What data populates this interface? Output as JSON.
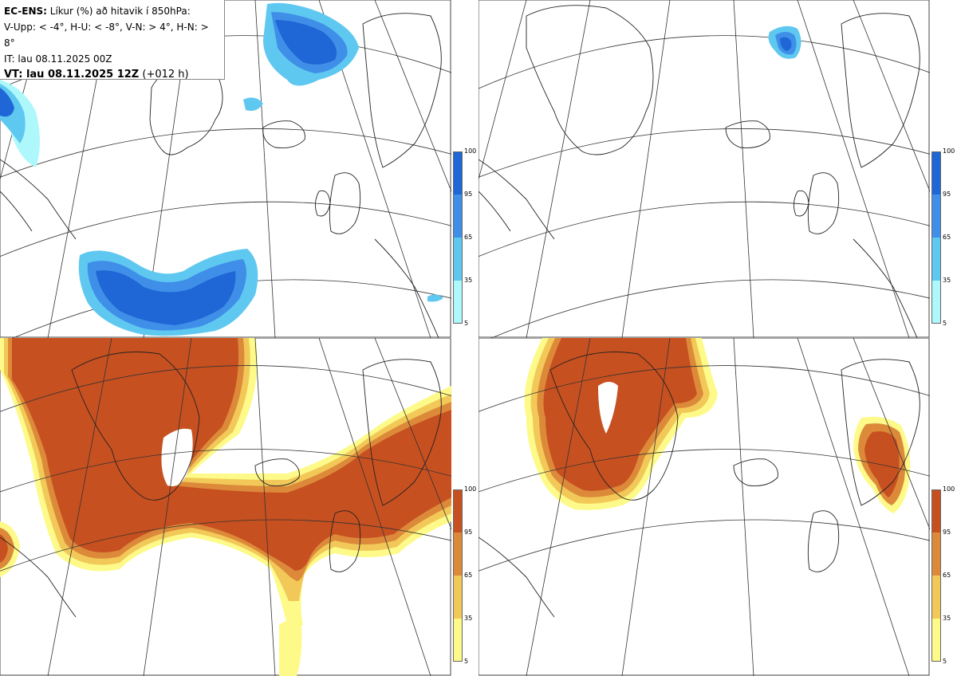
{
  "legend": {
    "line1_bold": "EC-ENS:",
    "line1_rest": " Líkur (%) að hitavik í 850hPa:",
    "line2": "V-Upp: < -4°, H-U: < -8°, V-N: > 4°, H-N: > 8°",
    "line3": "IT: lau 08.11.2025 00Z",
    "line4_bold": "VT: lau 08.11.2025 12Z",
    "line4_rest": " (+012 h)"
  },
  "colorbars": {
    "tick_labels": [
      "100",
      "95",
      "65",
      "35",
      "5"
    ],
    "cold_colors": [
      "#1f66d6",
      "#3f8fe8",
      "#5fc8f0",
      "#aef8fb"
    ],
    "warm_colors": [
      "#c75020",
      "#dc8a3a",
      "#f2c958",
      "#fdfa8a"
    ]
  },
  "panels": [
    {
      "name": "V-Upp",
      "threshold": "< -4°",
      "scheme": "cold"
    },
    {
      "name": "H-U",
      "threshold": "< -8°",
      "scheme": "cold"
    },
    {
      "name": "V-N",
      "threshold": "> 4°",
      "scheme": "warm"
    },
    {
      "name": "H-N",
      "threshold": "> 8°",
      "scheme": "warm"
    }
  ]
}
